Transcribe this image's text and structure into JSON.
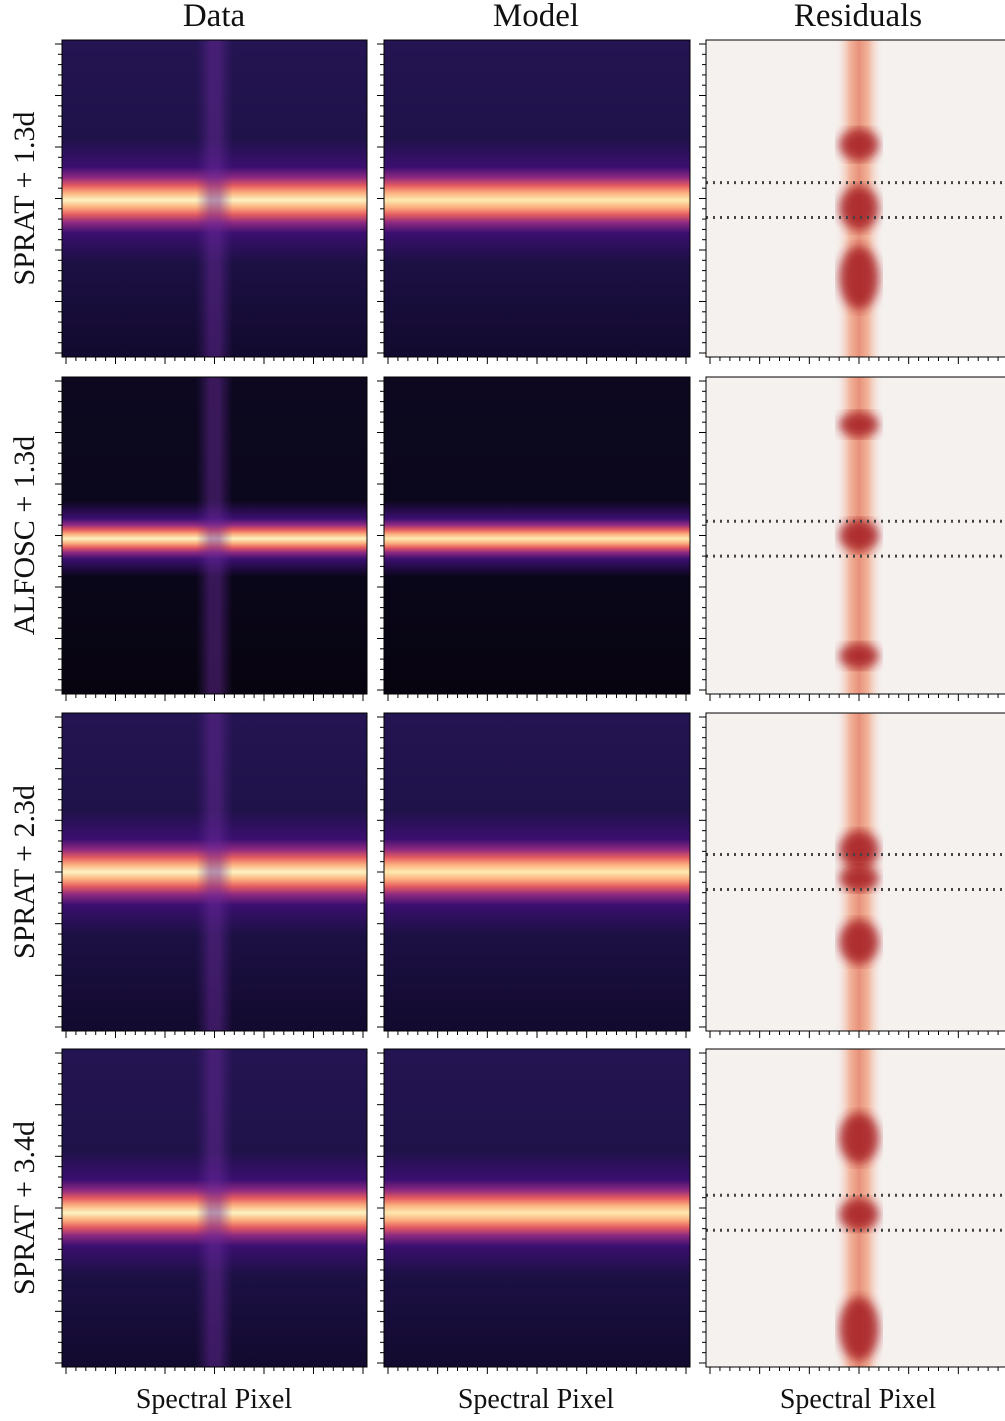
{
  "columns": [
    "Data",
    "Model",
    "Residuals"
  ],
  "rows": [
    "SPRAT  + 1.3d",
    "ALFOSC  + 1.3d",
    "SPRAT  + 2.3d",
    "SPRAT  + 3.4d"
  ],
  "x_label": "Spectral Pixel"
}
